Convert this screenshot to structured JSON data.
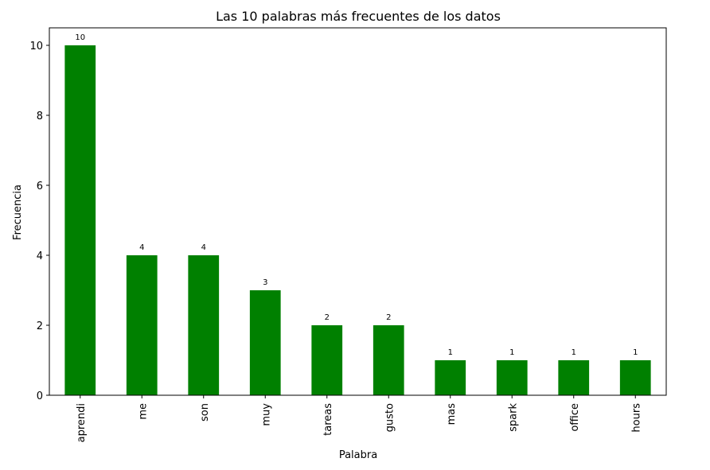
{
  "chart_data": {
    "type": "bar",
    "title": "Las 10 palabras más frecuentes de los datos",
    "xlabel": "Palabra",
    "ylabel": "Frecuencia",
    "categories": [
      "aprendi",
      "me",
      "son",
      "muy",
      "tareas",
      "gusto",
      "mas",
      "spark",
      "office",
      "hours"
    ],
    "values": [
      10,
      4,
      4,
      3,
      2,
      2,
      1,
      1,
      1,
      1
    ],
    "data_labels": [
      "10",
      "4",
      "4",
      "3",
      "2",
      "2",
      "1",
      "1",
      "1",
      "1"
    ],
    "ylim": [
      0,
      10.5
    ],
    "yticks": [
      0,
      2,
      4,
      6,
      8,
      10
    ],
    "ytick_labels": [
      "0",
      "2",
      "4",
      "6",
      "8",
      "10"
    ],
    "grid": false,
    "legend": "none",
    "colors": {
      "bar": "#008000"
    }
  }
}
